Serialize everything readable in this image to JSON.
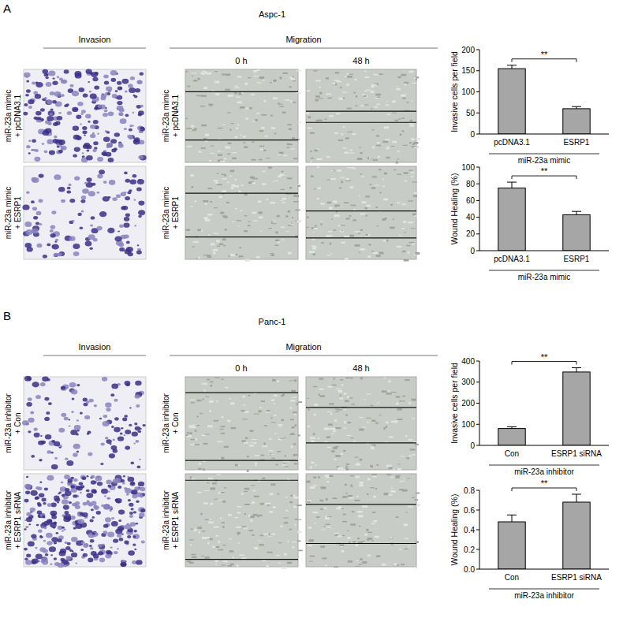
{
  "panels": [
    {
      "label": "A",
      "cell_line": "Aspc-1",
      "invasion_header": "Invasion",
      "migration_header": "Migration",
      "time_points": [
        "0 h",
        "48 h"
      ],
      "rows": [
        [
          "miR-23a mimic",
          "+ pcDNA3.1"
        ],
        [
          "miR-23a mimic",
          "+ ESRP1"
        ]
      ]
    },
    {
      "label": "B",
      "cell_line": "Panc-1",
      "invasion_header": "Invasion",
      "migration_header": "Migration",
      "time_points": [
        "0 h",
        "48 h"
      ],
      "rows": [
        [
          "miR-23a inhibitor",
          "+ Con"
        ],
        [
          "miR-23a inhibitor",
          "+ ESRP1 siRNA"
        ]
      ]
    }
  ],
  "chart_data": [
    {
      "type": "bar",
      "y_label": "Invasive cells per field",
      "categories": [
        "pcDNA3.1",
        "ESRP1"
      ],
      "values": [
        155,
        60
      ],
      "errors": [
        8,
        5
      ],
      "color": "#a6a6a6",
      "ylim": [
        0,
        200
      ],
      "yticks": [
        0,
        50,
        100,
        150,
        200
      ],
      "group_label": "miR-23a mimic",
      "annotation": "**"
    },
    {
      "type": "bar",
      "y_label": "Wound Healing (%)",
      "categories": [
        "pcDNA3.1",
        "ESRP1"
      ],
      "values": [
        75,
        43
      ],
      "errors": [
        7,
        4
      ],
      "color": "#a6a6a6",
      "ylim": [
        0,
        100
      ],
      "yticks": [
        0,
        20,
        40,
        60,
        80,
        100
      ],
      "group_label": "miR-23a mimic",
      "annotation": "**"
    },
    {
      "type": "bar",
      "y_label": "Invasive cells per field",
      "categories": [
        "Con",
        "ESRP1 siRNA"
      ],
      "values": [
        80,
        348
      ],
      "errors": [
        8,
        20
      ],
      "color": "#a6a6a6",
      "ylim": [
        0,
        400
      ],
      "yticks": [
        0,
        100,
        200,
        300,
        400
      ],
      "group_label": "miR-23a inhibitor",
      "annotation": "**"
    },
    {
      "type": "bar",
      "y_label": "Wound Healing (%)",
      "categories": [
        "Con",
        "ESRP1 siRNA"
      ],
      "values": [
        0.48,
        0.68
      ],
      "errors": [
        0.07,
        0.08
      ],
      "color": "#a6a6a6",
      "ylim": [
        0,
        0.8
      ],
      "yticks": [
        {
          "value": 0,
          "label": "0.0"
        },
        0.2,
        0.4,
        0.6,
        0.8
      ],
      "group_label": "miR-23a inhibitor",
      "annotation": "**"
    }
  ]
}
